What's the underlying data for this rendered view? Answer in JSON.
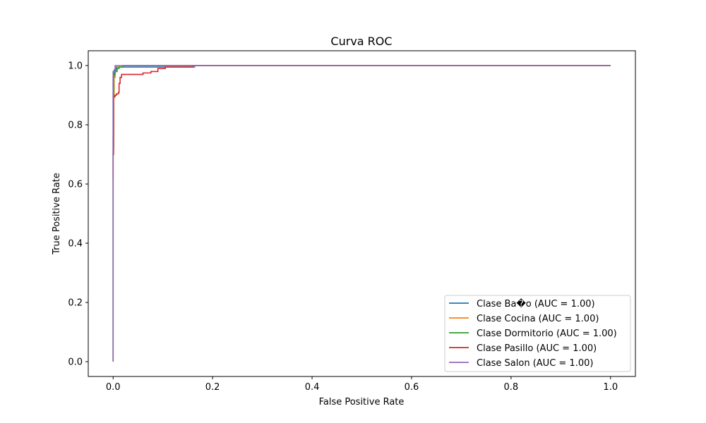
{
  "chart_data": {
    "type": "line",
    "title": "Curva ROC",
    "xlabel": "False Positive Rate",
    "ylabel": "True Positive Rate",
    "xlim": [
      -0.05,
      1.05
    ],
    "ylim": [
      -0.05,
      1.05
    ],
    "xticks": [
      "0.0",
      "0.2",
      "0.4",
      "0.6",
      "0.8",
      "1.0"
    ],
    "yticks": [
      "0.0",
      "0.2",
      "0.4",
      "0.6",
      "0.8",
      "1.0"
    ],
    "grid": false,
    "legend_position": "lower-right",
    "series": [
      {
        "name": "Clase Ba�o (AUC = 1.00)",
        "color": "#1f77b4",
        "points": [
          [
            0,
            0
          ],
          [
            0,
            0.96
          ],
          [
            0.002,
            0.96
          ],
          [
            0.002,
            0.985
          ],
          [
            0.006,
            0.985
          ],
          [
            0.006,
            0.995
          ],
          [
            0.165,
            0.995
          ]
        ]
      },
      {
        "name": "Clase Cocina (AUC = 1.00)",
        "color": "#ff7f0e",
        "points": [
          [
            0,
            0
          ],
          [
            0,
            0.76
          ],
          [
            0.001,
            0.76
          ],
          [
            0.001,
            0.89
          ],
          [
            0.002,
            0.89
          ],
          [
            0.002,
            0.96
          ],
          [
            0.004,
            0.96
          ],
          [
            0.004,
            0.98
          ],
          [
            0.008,
            0.98
          ],
          [
            0.008,
            0.995
          ],
          [
            0.02,
            0.995
          ],
          [
            0.02,
            1.0
          ],
          [
            1.0,
            1.0
          ]
        ]
      },
      {
        "name": "Clase Dormitorio (AUC = 1.00)",
        "color": "#2ca02c",
        "points": [
          [
            0,
            0
          ],
          [
            0,
            0.72
          ],
          [
            0.001,
            0.72
          ],
          [
            0.001,
            0.97
          ],
          [
            0.004,
            0.97
          ],
          [
            0.004,
            0.98
          ],
          [
            0.008,
            0.98
          ],
          [
            0.008,
            0.99
          ],
          [
            0.012,
            0.99
          ],
          [
            0.012,
            0.995
          ],
          [
            0.02,
            0.995
          ],
          [
            0.02,
            1.0
          ],
          [
            1.0,
            1.0
          ]
        ]
      },
      {
        "name": "Clase Pasillo (AUC = 1.00)",
        "color": "#d62728",
        "points": [
          [
            0,
            0.615
          ],
          [
            0,
            0.7
          ],
          [
            0.001,
            0.7
          ],
          [
            0.001,
            0.895
          ],
          [
            0.004,
            0.895
          ],
          [
            0.004,
            0.9
          ],
          [
            0.007,
            0.9
          ],
          [
            0.007,
            0.905
          ],
          [
            0.011,
            0.905
          ],
          [
            0.011,
            0.91
          ],
          [
            0.012,
            0.91
          ],
          [
            0.012,
            0.94
          ],
          [
            0.014,
            0.94
          ],
          [
            0.014,
            0.96
          ],
          [
            0.017,
            0.96
          ],
          [
            0.017,
            0.97
          ],
          [
            0.06,
            0.97
          ],
          [
            0.06,
            0.975
          ],
          [
            0.076,
            0.975
          ],
          [
            0.076,
            0.98
          ],
          [
            0.09,
            0.98
          ],
          [
            0.09,
            0.99
          ],
          [
            0.105,
            0.99
          ],
          [
            0.105,
            0.995
          ],
          [
            0.16,
            0.995
          ],
          [
            0.16,
            1.0
          ],
          [
            1.0,
            1.0
          ]
        ]
      },
      {
        "name": "Clase Salon (AUC = 1.00)",
        "color": "#9467bd",
        "points": [
          [
            0,
            0
          ],
          [
            0,
            0.98
          ],
          [
            0.004,
            0.98
          ],
          [
            0.004,
            1.0
          ],
          [
            1.0,
            1.0
          ]
        ]
      }
    ]
  }
}
